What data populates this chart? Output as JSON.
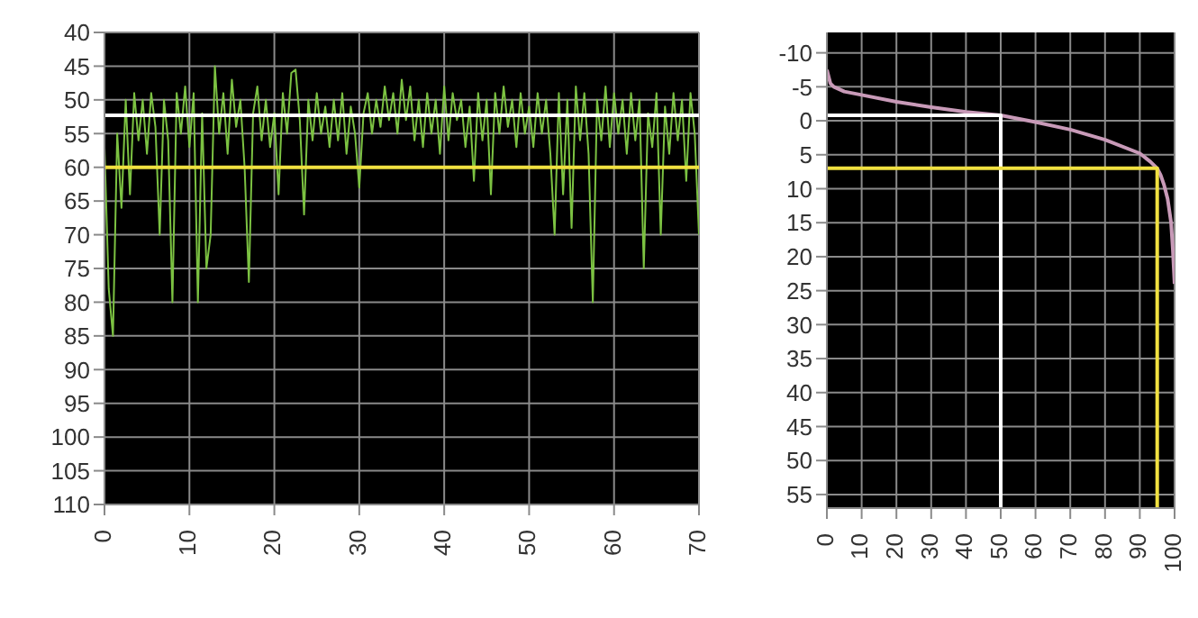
{
  "chart_data": [
    {
      "type": "line",
      "x": [
        0,
        0.5,
        1,
        1.5,
        2,
        2.5,
        3,
        3.5,
        4,
        4.5,
        5,
        5.5,
        6,
        6.5,
        7,
        7.5,
        8,
        8.5,
        9,
        9.5,
        10,
        10.5,
        11,
        11.5,
        12,
        12.5,
        13,
        13.5,
        14,
        14.5,
        15,
        15.5,
        16,
        16.5,
        17,
        17.5,
        18,
        18.5,
        19,
        19.5,
        20,
        20.5,
        21,
        21.5,
        22,
        22.5,
        23,
        23.5,
        24,
        24.5,
        25,
        25.5,
        26,
        26.5,
        27,
        27.5,
        28,
        28.5,
        29,
        29.5,
        30,
        30.5,
        31,
        31.5,
        32,
        32.5,
        33,
        33.5,
        34,
        34.5,
        35,
        35.5,
        36,
        36.5,
        37,
        37.5,
        38,
        38.5,
        39,
        39.5,
        40,
        40.5,
        41,
        41.5,
        42,
        42.5,
        43,
        43.5,
        44,
        44.5,
        45,
        45.5,
        46,
        46.5,
        47,
        47.5,
        48,
        48.5,
        49,
        49.5,
        50,
        50.5,
        51,
        51.5,
        52,
        52.5,
        53,
        53.5,
        54,
        54.5,
        55,
        55.5,
        56,
        56.5,
        57,
        57.5,
        58,
        58.5,
        59,
        59.5,
        60,
        60.5,
        61,
        61.5,
        62,
        62.5,
        63,
        63.5,
        64,
        64.5,
        65,
        65.5,
        66,
        66.5,
        67,
        67.5,
        68,
        68.5,
        69,
        69.5,
        70
      ],
      "series": [
        {
          "color": "#7cc242",
          "values": [
            57,
            78,
            85,
            55,
            66,
            50,
            64,
            49,
            56,
            50,
            58,
            49,
            54,
            70,
            50,
            56,
            80,
            49,
            55,
            48,
            57,
            49,
            80,
            52,
            75,
            70,
            45,
            55,
            49,
            58,
            47,
            54,
            50,
            60,
            77,
            52,
            48,
            56,
            50,
            57,
            52,
            64,
            49,
            55,
            46,
            45.5,
            53,
            67,
            50,
            56,
            49,
            55,
            51,
            57,
            50,
            56,
            49,
            58,
            51,
            55,
            63,
            52,
            49,
            55,
            50,
            54,
            48,
            53,
            49,
            55,
            47,
            53,
            48,
            56,
            50,
            57,
            49,
            55,
            50,
            58,
            48,
            56,
            49,
            53,
            50,
            57,
            51,
            62,
            49,
            56,
            50,
            64,
            49,
            55,
            48,
            54,
            50,
            57,
            49,
            55,
            51,
            57,
            49,
            55,
            50,
            58,
            70,
            49,
            64,
            50,
            69,
            48,
            56,
            49,
            58,
            80,
            50,
            56,
            48,
            57,
            49,
            55,
            50,
            58,
            49,
            56,
            50,
            75,
            52,
            57,
            49,
            70,
            51,
            58,
            49,
            56,
            50,
            62,
            49,
            55,
            70
          ]
        }
      ],
      "xlim": [
        0,
        70
      ],
      "xticks": [
        0,
        10,
        20,
        30,
        40,
        50,
        60,
        70
      ],
      "ylim": [
        110,
        40
      ],
      "yticks": [
        40,
        45,
        50,
        55,
        60,
        65,
        70,
        75,
        80,
        85,
        90,
        95,
        100,
        105,
        110
      ],
      "grid": true,
      "ref_lines": [
        {
          "axis": "y",
          "value": 52.3,
          "color": "#ffffff"
        },
        {
          "axis": "y",
          "value": 60,
          "color": "#f0e040"
        }
      ]
    },
    {
      "type": "line",
      "series": [
        {
          "color": "#c89ab8",
          "x": [
            0,
            1,
            2,
            5,
            10,
            20,
            30,
            40,
            50,
            60,
            70,
            80,
            90,
            93,
            95,
            96,
            97,
            98,
            99,
            99.5,
            100
          ],
          "values": [
            -7.5,
            -5.5,
            -5,
            -4.3,
            -3.8,
            -2.8,
            -2,
            -1.3,
            -0.8,
            0.2,
            1.3,
            2.8,
            4.8,
            6,
            7,
            8,
            9.5,
            11.5,
            15,
            19,
            24
          ]
        },
        {
          "color": "#ffffff",
          "x": [
            0,
            50,
            50
          ],
          "values": [
            -0.8,
            -0.8,
            57
          ]
        },
        {
          "color": "#f0e040",
          "x": [
            0,
            95,
            95
          ],
          "values": [
            7,
            7,
            57
          ]
        }
      ],
      "xlim": [
        0,
        100
      ],
      "xticks": [
        0,
        10,
        20,
        30,
        40,
        50,
        60,
        70,
        80,
        90,
        100
      ],
      "ylim": [
        57,
        -13
      ],
      "yticks": [
        -10,
        -5,
        0,
        5,
        10,
        15,
        20,
        25,
        30,
        35,
        40,
        45,
        50,
        55
      ],
      "grid": true
    }
  ]
}
